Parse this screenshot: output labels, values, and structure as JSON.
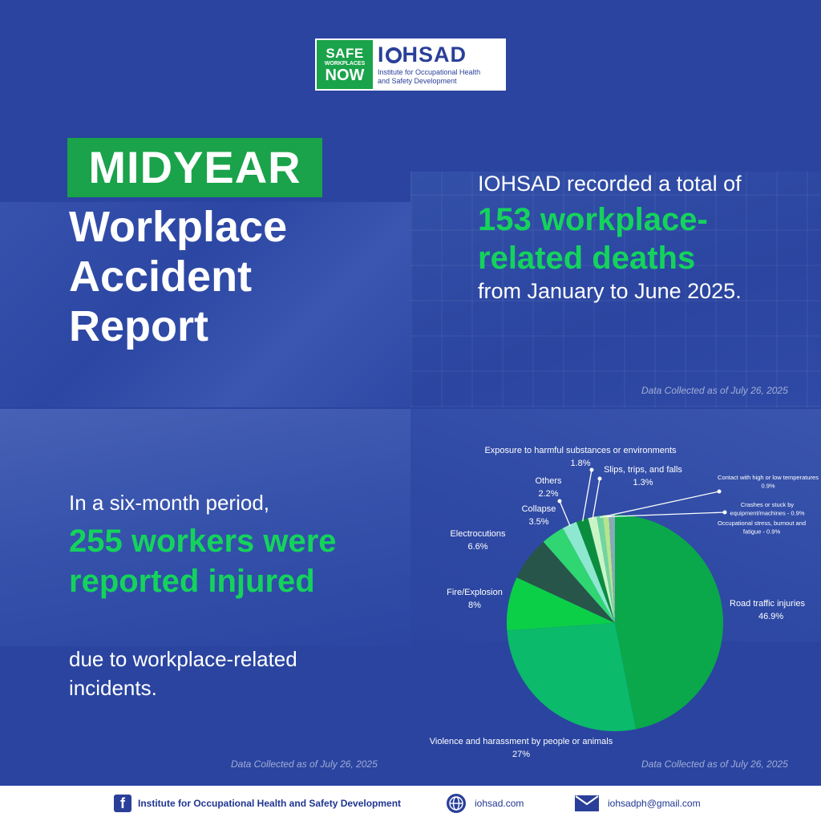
{
  "logo": {
    "safe": "SAFE",
    "workplaces": "WORKPLACES",
    "now": "NOW",
    "name_left": "I",
    "name_right": "HSAD",
    "subtitle_1": "Institute for Occupational Health",
    "subtitle_2": "and Safety Development"
  },
  "title": {
    "badge": "MIDYEAR",
    "line1": "Workplace",
    "line2": "Accident",
    "line3": "Report"
  },
  "deaths": {
    "intro": "IOHSAD recorded a total of",
    "highlight": "153 workplace-related deaths",
    "outro": "from January to June 2025.",
    "caption": "Data Collected as of July 26, 2025"
  },
  "injuries": {
    "intro": "In a six-month period,",
    "highlight": "255 workers were reported injured",
    "outro": "due to workplace-related incidents.",
    "caption": "Data Collected as of July 26, 2025"
  },
  "chart_caption": "Data Collected as of July 26, 2025",
  "chart_data": {
    "type": "pie",
    "unit": "%",
    "slices": [
      {
        "label": "Road traffic injuries",
        "value": 46.9,
        "value_text": "46.9%",
        "color": "#0aa84a"
      },
      {
        "label": "Violence and harassment by people or animals",
        "value": 27,
        "value_text": "27%",
        "color": "#0bba6a"
      },
      {
        "label": "Fire/Explosion",
        "value": 8,
        "value_text": "8%",
        "color": "#0ccf48"
      },
      {
        "label": "Electrocutions",
        "value": 6.6,
        "value_text": "6.6%",
        "color": "#27554a"
      },
      {
        "label": "Collapse",
        "value": 3.5,
        "value_text": "3.5%",
        "color": "#2fd672"
      },
      {
        "label": "Others",
        "value": 2.2,
        "value_text": "2.2%",
        "color": "#8de8cf"
      },
      {
        "label": "Exposure to harmful substances or environments",
        "value": 1.8,
        "value_text": "1.8%",
        "color": "#0b8d3e"
      },
      {
        "label": "Slips, trips, and falls",
        "value": 1.3,
        "value_text": "1.3%",
        "color": "#c9f5c6"
      },
      {
        "label": "Contact with high or low temperatures",
        "value": 0.9,
        "value_text": "0.9%",
        "color": "#6fd6a0"
      },
      {
        "label": "Crashes or stuck by equipment/machines",
        "value": 0.9,
        "value_text": "0.9%",
        "color": "#b6e58f"
      },
      {
        "label": "Occupational stress, burnout and fatigue",
        "value": 0.9,
        "value_text": "0.9%",
        "color": "#86aab8"
      }
    ],
    "legend": "none"
  },
  "footer": {
    "facebook": "Institute for Occupational Health and Safety Development",
    "website": "iohsad.com",
    "email": "iohsadph@gmail.com"
  }
}
